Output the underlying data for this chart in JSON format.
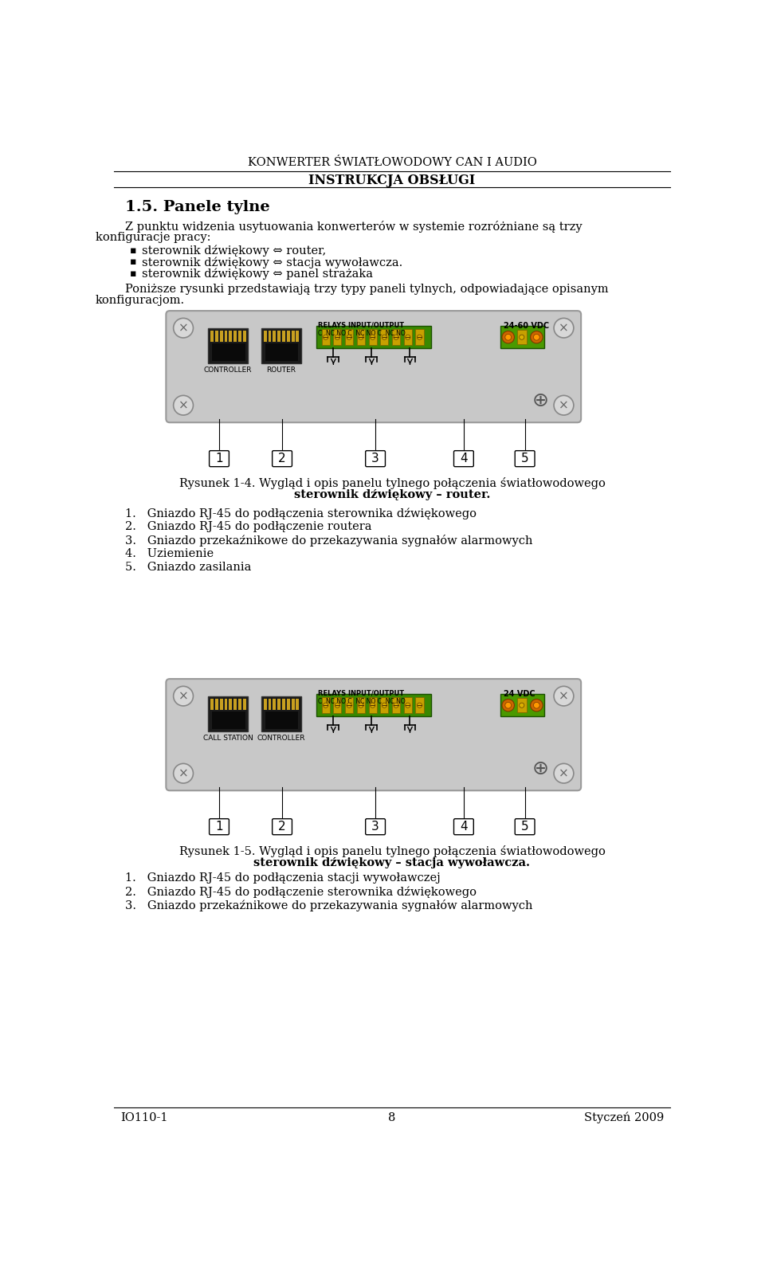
{
  "page_title": "KONWERTER ŚWIATŁOWODOWY CAN I AUDIO",
  "page_subtitle": "INSTRUKCJA OBSŁUGI",
  "section_title": "1.5. Panele tylne",
  "body_text_1a": "Z punktu widzenia usytuowania konwerterów w systemie rozróżniane są trzy",
  "body_text_1b": "konfiguracje pracy:",
  "bullet1": "sterownik dźwiękowy ⇔ router,",
  "bullet2": "sterownik dźwiękowy ⇔ stacja wywoławcza.",
  "bullet3": "sterownik dźwiękowy ⇔ panel strażaka",
  "body_text_2a": "Poniższe rysunki przedstawiają trzy typy paneli tylnych, odpowiadające opisanym",
  "body_text_2b": "konfiguracjom.",
  "fig1_cap_normal": "Rysunek 1-4. Wygląd i opis panelu tylnego połączenia światłowodowego",
  "fig1_cap_bold": "sterownik dźwiękowy – router.",
  "fig1_label1": "1.   Gniazdo RJ-45 do podłączenia sterownika dźwiękowego",
  "fig1_label2": "2.   Gniazdo RJ-45 do podłączenie routera",
  "fig1_label3": "3.   Gniazdo przekaźnikowe do przekazywania sygnałów alarmowych",
  "fig1_label4": "4.   Uziemienie",
  "fig1_label5": "5.   Gniazdo zasilania",
  "fig2_cap_normal": "Rysunek 1-5. Wygląd i opis panelu tylnego połączenia światłowodowego",
  "fig2_cap_bold": "sterownik dźwiękowy – stacja wywoławcza.",
  "fig2_label1": "1.   Gniazdo RJ-45 do podłączenia stacji wywoławczej",
  "fig2_label2": "2.   Gniazdo RJ-45 do podłączenie sterownika dźwiękowego",
  "fig2_label3": "3.   Gniazdo przekaźnikowe do przekazywania sygnałów alarmowych",
  "footer_left": "IO110-1",
  "footer_center": "8",
  "footer_right": "Styczeń 2009",
  "bg_color": "#ffffff",
  "panel_bg": "#c8c8c8",
  "panel_border": "#999999",
  "green_relay": "#3a8800",
  "green_power": "#4a9900",
  "yellow_screw": "#d4a000",
  "orange_screw": "#cc7700",
  "relay_header": "RELAYS INPUT/OUTPUT",
  "relay_pins": "C  NC NO C  NC NO C  NC NO",
  "vdc_label1": "24-60 VDC",
  "vdc_label2": "24 VDC",
  "ctrl_label": "CONTROLLER",
  "router_label": "ROUTER",
  "call_label": "CALL STATION",
  "ctrl_label2": "CONTROLLER"
}
